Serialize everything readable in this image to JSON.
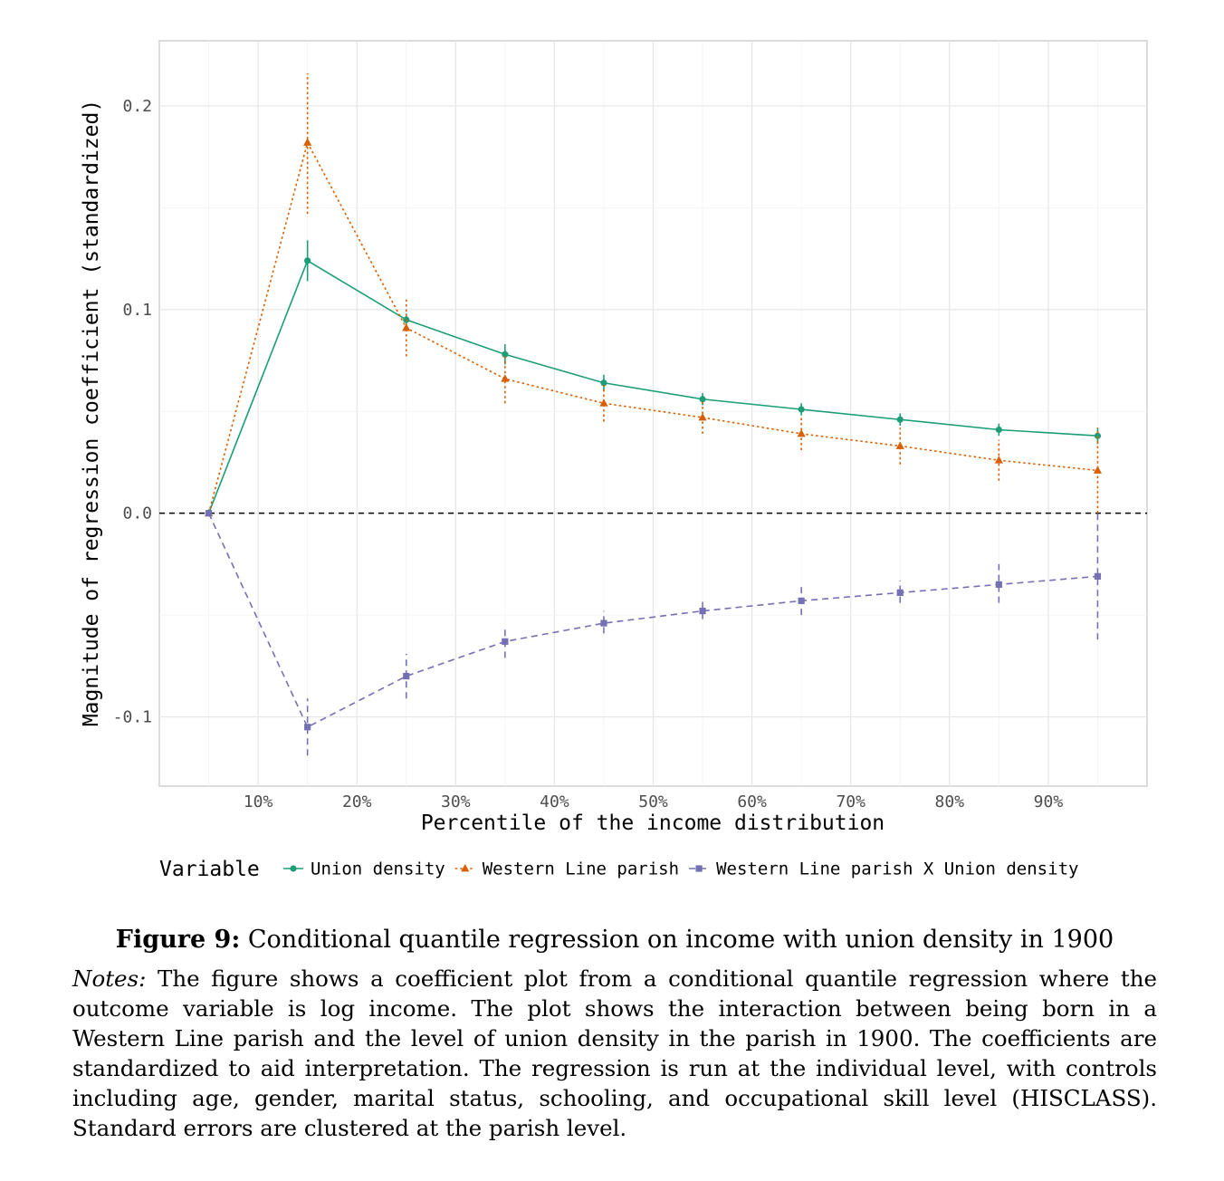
{
  "chart_data": {
    "type": "line",
    "xlabel": "Percentile of the income distribution",
    "ylabel": "Magnitude of regression coefficient (standardized)",
    "x": [
      5,
      15,
      25,
      35,
      45,
      55,
      65,
      75,
      85,
      95
    ],
    "x_ticks": [
      10,
      20,
      30,
      40,
      50,
      60,
      70,
      80,
      90
    ],
    "x_tick_labels": [
      "10%",
      "20%",
      "30%",
      "40%",
      "50%",
      "60%",
      "70%",
      "80%",
      "90%"
    ],
    "xlim": [
      0,
      100
    ],
    "y_ticks": [
      -0.1,
      0.0,
      0.1,
      0.2
    ],
    "y_tick_labels": [
      "-0.1",
      "0.0",
      "0.1",
      "0.2"
    ],
    "ylim": [
      -0.134,
      0.232
    ],
    "reference_line": 0,
    "legend_title": "Variable",
    "legend_position": "bottom",
    "grid": true,
    "series": [
      {
        "name": "Union density",
        "color": "#1b9e77",
        "marker": "circle",
        "linestyle": "solid",
        "values": [
          0.0,
          0.124,
          0.095,
          0.078,
          0.064,
          0.056,
          0.051,
          0.046,
          0.041,
          0.038
        ],
        "lower": [
          0.0,
          0.114,
          0.092,
          0.073,
          0.06,
          0.053,
          0.048,
          0.043,
          0.038,
          0.034
        ],
        "upper": [
          0.0,
          0.134,
          0.098,
          0.083,
          0.068,
          0.059,
          0.054,
          0.049,
          0.044,
          0.042
        ]
      },
      {
        "name": "Western Line parish",
        "color": "#d95f02",
        "marker": "triangle",
        "linestyle": "dotted",
        "values": [
          0.0,
          0.182,
          0.091,
          0.066,
          0.054,
          0.047,
          0.039,
          0.033,
          0.026,
          0.021
        ],
        "lower": [
          0.0,
          0.147,
          0.077,
          0.054,
          0.045,
          0.039,
          0.031,
          0.024,
          0.016,
          0.0
        ],
        "upper": [
          0.0,
          0.216,
          0.105,
          0.078,
          0.063,
          0.055,
          0.047,
          0.042,
          0.036,
          0.042
        ]
      },
      {
        "name": "Western Line parish X Union density",
        "color": "#7570b3",
        "marker": "square",
        "linestyle": "dashed",
        "values": [
          0.0,
          -0.105,
          -0.08,
          -0.063,
          -0.054,
          -0.048,
          -0.043,
          -0.039,
          -0.035,
          -0.031
        ],
        "lower": [
          0.0,
          -0.119,
          -0.091,
          -0.071,
          -0.059,
          -0.052,
          -0.05,
          -0.044,
          -0.044,
          -0.062
        ],
        "upper": [
          0.0,
          -0.091,
          -0.069,
          -0.055,
          -0.048,
          -0.043,
          -0.035,
          -0.033,
          -0.025,
          0.0
        ]
      }
    ]
  },
  "caption": {
    "label": "Figure 9:",
    "title": "Conditional quantile regression on income with union density in 1900",
    "notes_label": "Notes:",
    "notes": "The figure shows a coefficient plot from a conditional quantile regression where the outcome variable is log income.  The plot shows the interaction between being born in a Western Line parish and the level of union density in the parish in 1900. The coefficients are standardized to aid interpretation. The regression is run at the individual level, with controls including age, gender, marital status, schooling, and occupational skill level (HISCLASS). Standard errors are clustered at the parish level."
  }
}
